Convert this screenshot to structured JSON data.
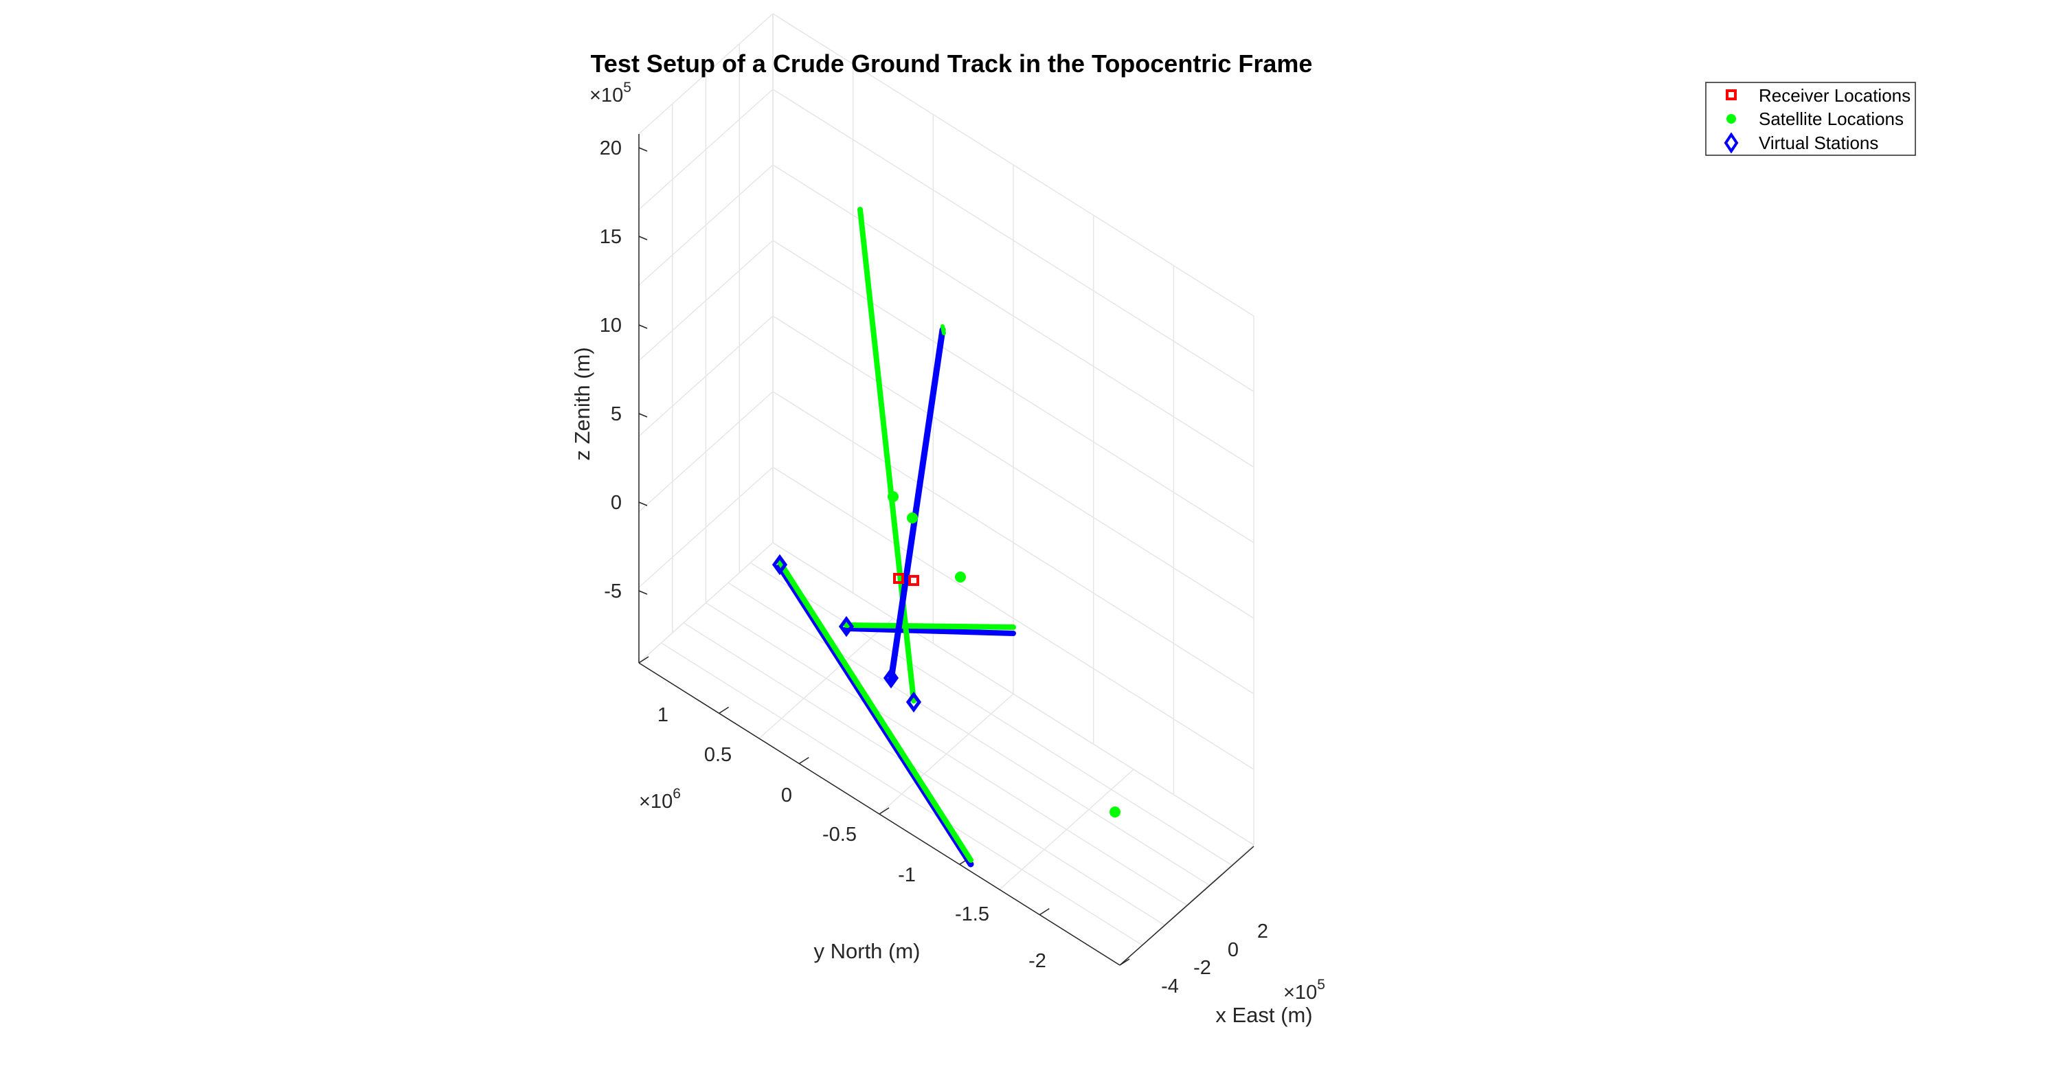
{
  "chart_data": {
    "type": "3d-line-scatter",
    "title": "Test Setup of a Crude Ground Track in the Topocentric Frame",
    "xlabel": "x East (m)",
    "ylabel": "y North (m)",
    "zlabel": "z Zenith (m)",
    "x_ticks": [
      "-4",
      "-2",
      "0",
      "2"
    ],
    "x_exponent": "×10",
    "x_exponent_power": "5",
    "y_ticks": [
      "-2",
      "-1.5",
      "-1",
      "-0.5",
      "0",
      "0.5",
      "1"
    ],
    "y_exponent": "×10",
    "y_exponent_power": "6",
    "z_ticks": [
      "-5",
      "0",
      "5",
      "10",
      "15",
      "20"
    ],
    "z_exponent": "×10",
    "z_exponent_power": "5",
    "grid": true,
    "legend_position": "top-right",
    "legend": [
      {
        "label": "Receiver Locations",
        "marker": "square",
        "color": "#ff0000"
      },
      {
        "label": "Satellite Locations",
        "marker": "circle",
        "color": "#00ff00"
      },
      {
        "label": "Virtual Stations",
        "marker": "diamond",
        "color": "#0000ff"
      }
    ],
    "colors": {
      "receiver": "#ff0000",
      "satellite": "#00ff00",
      "virtual": "#0000ff",
      "grid": "#e6e6e6",
      "axis": "#262626"
    }
  }
}
